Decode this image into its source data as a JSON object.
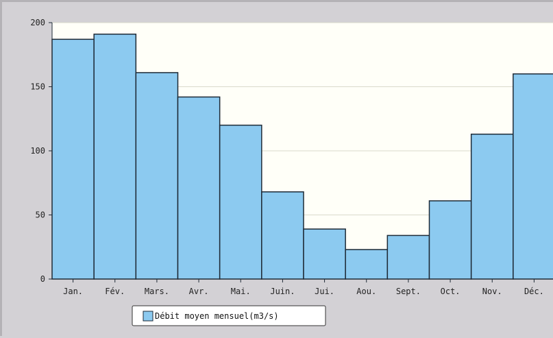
{
  "chart_data": {
    "type": "bar",
    "categories": [
      "Jan.",
      "Fév.",
      "Mars.",
      "Avr.",
      "Mai.",
      "Juin.",
      "Jui.",
      "Aou.",
      "Sept.",
      "Oct.",
      "Nov.",
      "Déc."
    ],
    "series": [
      {
        "name": "Débit moyen mensuel(m3/s)",
        "values": [
          187,
          191,
          161,
          142,
          120,
          68,
          39,
          23,
          34,
          61,
          113,
          160
        ]
      }
    ],
    "title": "",
    "xlabel": "",
    "ylabel": "",
    "ylim": [
      0,
      200
    ],
    "yticks": [
      0,
      50,
      100,
      150,
      200
    ],
    "grid": true,
    "legend_position": "bottom-center",
    "colors": {
      "bar_fill": "#8ccaf0",
      "bar_stroke": "#1e2a36",
      "plot_background": "#fffff8",
      "outer_background": "#d3d1d5",
      "gridline": "#d9d9cc"
    }
  }
}
